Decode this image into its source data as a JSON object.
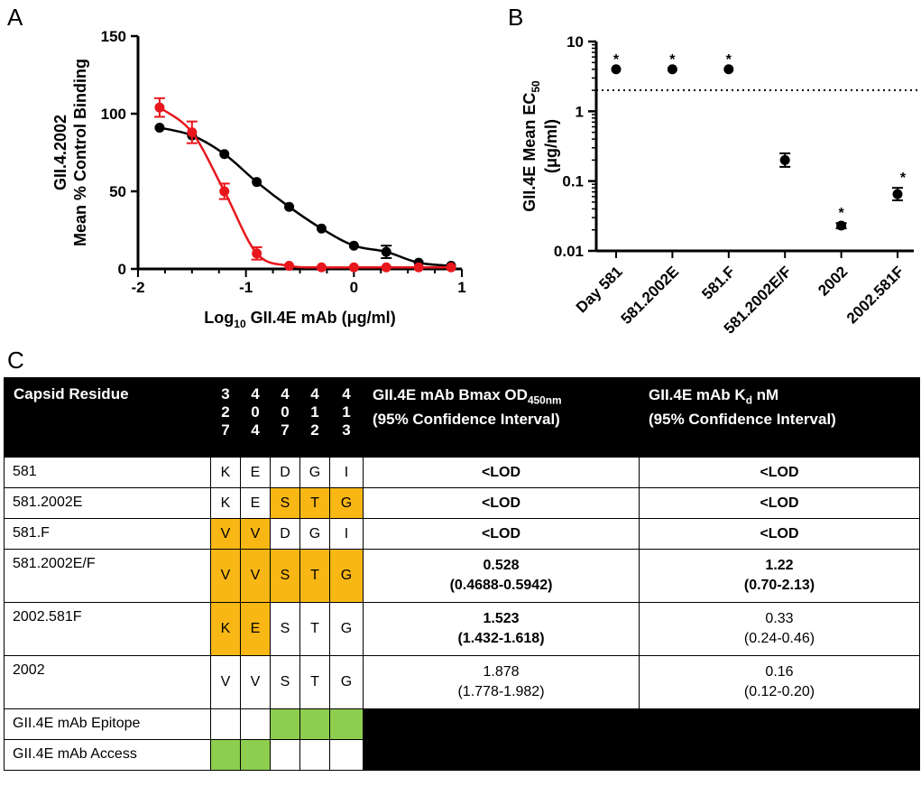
{
  "panels": {
    "a": "A",
    "b": "B",
    "c": "C"
  },
  "chart_data": [
    {
      "type": "line",
      "ylabel_line1": "GII.4.2002",
      "ylabel_line2": "Mean % Control Binding",
      "xlabel_prefix": "Log",
      "xlabel_sub": "10",
      "xlabel_suffix": " GII.4E mAb (μg/ml)",
      "xlim": [
        -2,
        1
      ],
      "ylim": [
        0,
        150
      ],
      "xticks": [
        "-2",
        "-1",
        "0",
        "1"
      ],
      "yticks": [
        "0",
        "50",
        "100",
        "150"
      ],
      "series": [
        {
          "color": "#000000",
          "x": [
            -1.8,
            -1.5,
            -1.2,
            -0.9,
            -0.6,
            -0.3,
            0.0,
            0.3,
            0.6,
            0.9
          ],
          "y": [
            91,
            86,
            74,
            56,
            40,
            26,
            15,
            11,
            4,
            2
          ],
          "err": [
            0,
            0,
            0,
            0,
            0,
            0,
            0,
            4,
            0,
            0
          ]
        },
        {
          "color": "#e8171d",
          "x": [
            -1.8,
            -1.5,
            -1.2,
            -0.9,
            -0.6,
            -0.3,
            0.0,
            0.3,
            0.6,
            0.9
          ],
          "y": [
            104,
            88,
            50,
            10,
            2,
            1,
            1,
            1,
            1,
            1
          ],
          "err": [
            6,
            7,
            5,
            4,
            0,
            0,
            0,
            0,
            0,
            0
          ]
        }
      ]
    },
    {
      "type": "scatter",
      "ylabel_line1_prefix": "GII.4E Mean EC",
      "ylabel_line1_sub": "50",
      "ylabel_line2": "(μg/ml)",
      "yscale": "log",
      "ylim": [
        0.01,
        10
      ],
      "yticks": [
        "0.01",
        "0.1",
        "1",
        "10"
      ],
      "reference_line": 2,
      "categories": [
        "Day 581",
        "581.2002E",
        "581.F",
        "581.2002E/F",
        "2002",
        "2002.581F"
      ],
      "values": [
        4,
        4,
        4,
        0.2,
        0.023,
        0.065
      ],
      "err_low": [
        4,
        4,
        4,
        0.16,
        0.021,
        0.053
      ],
      "err_high": [
        4,
        4,
        4,
        0.25,
        0.025,
        0.08
      ],
      "marks": [
        "*",
        "*",
        "*",
        "",
        "*",
        "*"
      ]
    }
  ],
  "table": {
    "header": {
      "capsid": "Capsid Residue",
      "residues": [
        [
          "3",
          "2",
          "7"
        ],
        [
          "4",
          "0",
          "4"
        ],
        [
          "4",
          "0",
          "7"
        ],
        [
          "4",
          "1",
          "2"
        ],
        [
          "4",
          "1",
          "3"
        ]
      ],
      "bmax_line1_prefix": "GII.4E mAb Bmax  OD",
      "bmax_line1_sub": "450nm",
      "bmax_line2": "(95% Confidence Interval)",
      "kd_line1_prefix": "GII.4E mAb K",
      "kd_line1_sub": "d",
      "kd_line1_suffix": "  nM",
      "kd_line2": "(95% Confidence Interval)"
    },
    "rows": [
      {
        "name": "581",
        "res": [
          "K",
          "E",
          "D",
          "G",
          "I"
        ],
        "hl": [
          "",
          "",
          "",
          "",
          ""
        ],
        "bmax": "<LOD",
        "bmax_ci": "",
        "bmax_bold": true,
        "kd": "<LOD",
        "kd_ci": "",
        "kd_bold": true
      },
      {
        "name": "581.2002E",
        "res": [
          "K",
          "E",
          "S",
          "T",
          "G"
        ],
        "hl": [
          "",
          "",
          "o",
          "o",
          "o"
        ],
        "bmax": "<LOD",
        "bmax_ci": "",
        "bmax_bold": true,
        "kd": "<LOD",
        "kd_ci": "",
        "kd_bold": true
      },
      {
        "name": "581.F",
        "res": [
          "V",
          "V",
          "D",
          "G",
          "I"
        ],
        "hl": [
          "o",
          "o",
          "",
          "",
          ""
        ],
        "bmax": "<LOD",
        "bmax_ci": "",
        "bmax_bold": true,
        "kd": "<LOD",
        "kd_ci": "",
        "kd_bold": true
      },
      {
        "name": "581.2002E/F",
        "res": [
          "V",
          "V",
          "S",
          "T",
          "G"
        ],
        "hl": [
          "o",
          "o",
          "o",
          "o",
          "o"
        ],
        "bmax": "0.528",
        "bmax_ci": "(0.4688-0.5942)",
        "bmax_bold": true,
        "kd": "1.22",
        "kd_ci": "(0.70-2.13)",
        "kd_bold": true
      },
      {
        "name": "2002.581F",
        "res": [
          "K",
          "E",
          "S",
          "T",
          "G"
        ],
        "hl": [
          "o",
          "o",
          "",
          "",
          ""
        ],
        "bmax": "1.523",
        "bmax_ci": "(1.432-1.618)",
        "bmax_bold": true,
        "kd": "0.33",
        "kd_ci": "(0.24-0.46)",
        "kd_bold": false
      },
      {
        "name": "2002",
        "res": [
          "V",
          "V",
          "S",
          "T",
          "G"
        ],
        "hl": [
          "",
          "",
          "",
          "",
          ""
        ],
        "bmax": "1.878",
        "bmax_ci": "(1.778-1.982)",
        "bmax_bold": false,
        "kd": "0.16",
        "kd_ci": "(0.12-0.20)",
        "kd_bold": false
      }
    ],
    "epitope_label": "GII.4E mAb Epitope",
    "epitope_hl": [
      "",
      "",
      "g",
      "g",
      "g"
    ],
    "access_label": "GII.4E mAb Access",
    "access_hl": [
      "g",
      "g",
      "",
      "",
      ""
    ]
  }
}
